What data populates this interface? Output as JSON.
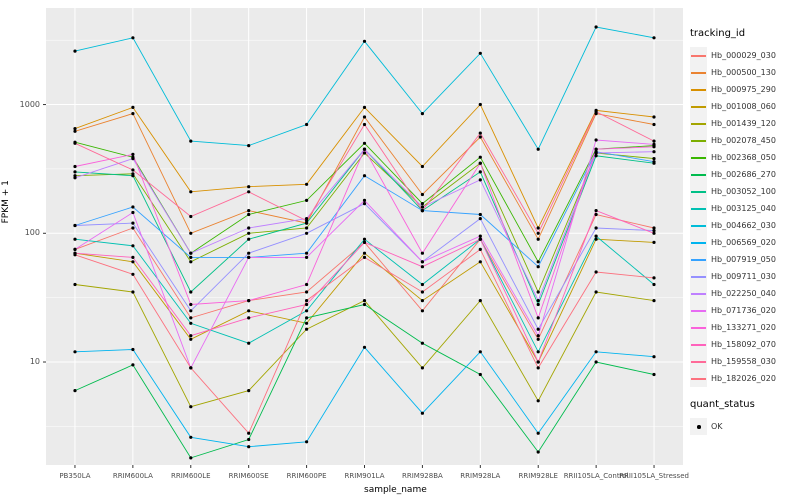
{
  "chart_data": {
    "type": "line",
    "title": "",
    "xlabel": "sample_name",
    "ylabel": "FPKM + 1",
    "y_scale": "log10",
    "ylim": [
      1.6,
      5600
    ],
    "y_ticks": [
      10,
      100,
      1000
    ],
    "grid": true,
    "legend_position": "right",
    "panel_bg": "#EBEBEB",
    "grid_color": "#FFFFFF",
    "point_color": "#000000",
    "categories": [
      "PB350LA",
      "RRIM600LA",
      "RRIM600LE",
      "RRIM600SE",
      "RRIM600PE",
      "RRIM901LA",
      "RRIM928BA",
      "RRIM928LA",
      "RRIM928LE",
      "RRII105LA_Control",
      "RRII105LA_Stressed"
    ],
    "series": [
      {
        "name": "Hb_000029_030",
        "color": "#F8766D",
        "values": [
          75,
          110,
          22,
          30,
          35,
          85,
          25,
          90,
          15,
          140,
          110
        ]
      },
      {
        "name": "Hb_000500_130",
        "color": "#EA8331",
        "values": [
          620,
          850,
          100,
          150,
          120,
          800,
          200,
          560,
          90,
          850,
          700
        ]
      },
      {
        "name": "Hb_000975_290",
        "color": "#D89000",
        "values": [
          650,
          950,
          210,
          230,
          240,
          950,
          330,
          1000,
          110,
          900,
          800
        ]
      },
      {
        "name": "Hb_001008_060",
        "color": "#C09B00",
        "values": [
          70,
          60,
          15,
          25,
          20,
          70,
          30,
          60,
          10,
          90,
          85
        ]
      },
      {
        "name": "Hb_001439_120",
        "color": "#A3A500",
        "values": [
          40,
          35,
          4.5,
          6,
          18,
          30,
          9,
          30,
          5,
          35,
          30
        ]
      },
      {
        "name": "Hb_002078_450",
        "color": "#7CAE00",
        "values": [
          280,
          290,
          60,
          100,
          110,
          420,
          160,
          350,
          35,
          420,
          380
        ]
      },
      {
        "name": "Hb_002368_050",
        "color": "#39B600",
        "values": [
          510,
          390,
          70,
          140,
          180,
          500,
          170,
          390,
          60,
          450,
          480
        ]
      },
      {
        "name": "Hb_002686_270",
        "color": "#00BB4E",
        "values": [
          6,
          9.5,
          1.8,
          2.5,
          22,
          28,
          14,
          8,
          2,
          10,
          8
        ]
      },
      {
        "name": "Hb_003052_100",
        "color": "#00C087",
        "values": [
          300,
          280,
          35,
          90,
          120,
          450,
          150,
          300,
          28,
          400,
          350
        ]
      },
      {
        "name": "Hb_003125_040",
        "color": "#00C0B2",
        "values": [
          90,
          80,
          20,
          14,
          25,
          90,
          40,
          90,
          12,
          95,
          40
        ]
      },
      {
        "name": "Hb_004662_030",
        "color": "#00BCD8",
        "values": [
          2600,
          3300,
          520,
          480,
          700,
          3100,
          850,
          2500,
          450,
          4000,
          3300
        ]
      },
      {
        "name": "Hb_006569_020",
        "color": "#00B4EF",
        "values": [
          12,
          12.5,
          2.6,
          2.2,
          2.4,
          13,
          4,
          12,
          2.8,
          12,
          11
        ]
      },
      {
        "name": "Hb_007919_050",
        "color": "#35A2FF",
        "values": [
          115,
          160,
          65,
          65,
          70,
          280,
          150,
          140,
          55,
          430,
          360
        ]
      },
      {
        "name": "Hb_009711_030",
        "color": "#9590FF",
        "values": [
          115,
          120,
          25,
          70,
          100,
          170,
          60,
          130,
          18,
          110,
          105
        ]
      },
      {
        "name": "Hb_022250_040",
        "color": "#BF80FF",
        "values": [
          270,
          380,
          70,
          110,
          130,
          450,
          160,
          260,
          30,
          420,
          430
        ]
      },
      {
        "name": "Hb_071736_020",
        "color": "#E76BF3",
        "values": [
          75,
          145,
          9,
          65,
          65,
          180,
          60,
          95,
          16,
          530,
          490
        ]
      },
      {
        "name": "Hb_133271_020",
        "color": "#FA62DB",
        "values": [
          330,
          410,
          28,
          30,
          40,
          450,
          70,
          350,
          22,
          450,
          470
        ]
      },
      {
        "name": "Hb_158092_070",
        "color": "#FF62BC",
        "values": [
          70,
          65,
          16,
          22,
          28,
          85,
          55,
          90,
          10,
          150,
          100
        ]
      },
      {
        "name": "Hb_159558_030",
        "color": "#FF6A98",
        "values": [
          500,
          310,
          135,
          210,
          125,
          700,
          150,
          600,
          100,
          880,
          520
        ]
      },
      {
        "name": "Hb_182026_020",
        "color": "#FC717F",
        "values": [
          68,
          48,
          9,
          2.8,
          30,
          65,
          35,
          75,
          9,
          50,
          45
        ]
      }
    ],
    "legend": {
      "color_title": "tracking_id",
      "shape_title": "quant_status",
      "shape_entries": [
        {
          "label": "OK"
        }
      ]
    }
  }
}
